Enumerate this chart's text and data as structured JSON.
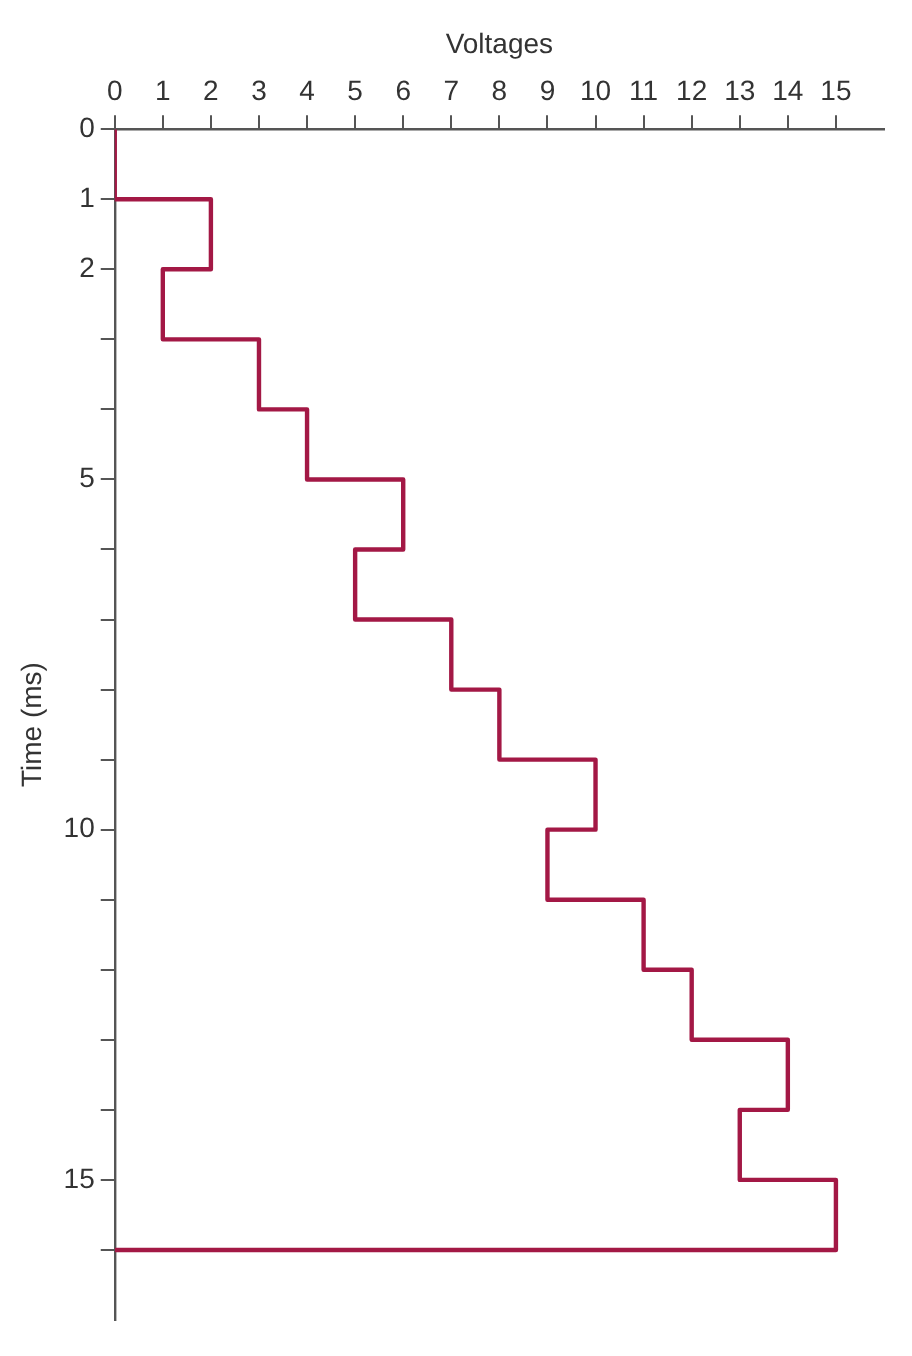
{
  "chart_data": {
    "type": "step",
    "orientation": "horizontal",
    "xlabel": "Voltages",
    "ylabel": "Time (ms)",
    "series": [
      {
        "color": "#a31845",
        "x": [
          0,
          1,
          2,
          3,
          4,
          5,
          6,
          7,
          8,
          9,
          10,
          11,
          12,
          13,
          14,
          15,
          16
        ],
        "values": [
          0,
          2,
          1,
          3,
          4,
          6,
          5,
          7,
          8,
          10,
          9,
          11,
          12,
          14,
          13,
          15,
          0
        ]
      }
    ],
    "xlim": [
      0,
      16
    ],
    "xticks": [
      0,
      1,
      2,
      3,
      4,
      5,
      6,
      7,
      8,
      9,
      10,
      11,
      12,
      13,
      14,
      15
    ],
    "ylim": [
      17,
      0
    ],
    "yticks": [
      0,
      1,
      2,
      {
        "value": 3,
        "label": null
      },
      {
        "value": 4,
        "label": null
      },
      5,
      {
        "value": 6,
        "label": null
      },
      {
        "value": 7,
        "label": null
      },
      {
        "value": 8,
        "label": null
      },
      {
        "value": 9,
        "label": null
      },
      10,
      {
        "value": 11,
        "label": null
      },
      {
        "value": 12,
        "label": null
      },
      {
        "value": 13,
        "label": null
      },
      {
        "value": 14,
        "label": null
      },
      15,
      {
        "value": 16,
        "label": null
      }
    ],
    "grid": false,
    "legend": false
  }
}
